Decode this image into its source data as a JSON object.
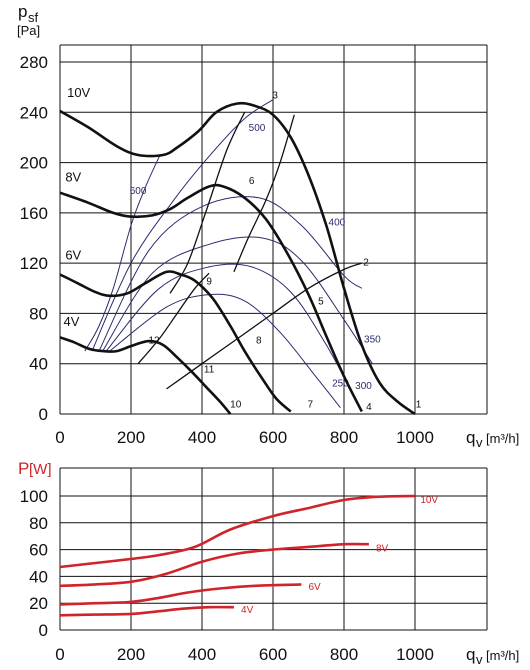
{
  "colors": {
    "ink": "#111111",
    "efficiency": "#2b2d6e",
    "power": "#d1232a"
  },
  "chart_data": [
    {
      "type": "line",
      "ylabel_main": "p",
      "ylabel_sub": "sf",
      "ylabel_unit": "[Pa]",
      "xlabel_main": "q",
      "xlabel_sub": "v",
      "xlabel_unit": "[m³/h]",
      "xlim": [
        0,
        1000
      ],
      "ylim": [
        0,
        280
      ],
      "x_ticks": [
        "0",
        "200",
        "400",
        "600",
        "800",
        "1000"
      ],
      "y_ticks": [
        "0",
        "40",
        "80",
        "120",
        "160",
        "200",
        "240",
        "280"
      ],
      "grid": true,
      "series": [
        {
          "name": "10V",
          "points": [
            [
              0,
              241
            ],
            [
              80,
              228
            ],
            [
              160,
              213
            ],
            [
              220,
              206
            ],
            [
              290,
              206
            ],
            [
              330,
              212
            ],
            [
              390,
              225
            ],
            [
              440,
              240
            ],
            [
              500,
              247
            ],
            [
              550,
              245
            ],
            [
              600,
              238
            ],
            [
              650,
              220
            ],
            [
              700,
              190
            ],
            [
              750,
              150
            ],
            [
              800,
              100
            ],
            [
              850,
              55
            ],
            [
              900,
              25
            ],
            [
              950,
              10
            ],
            [
              1000,
              0
            ]
          ]
        },
        {
          "name": "8V",
          "points": [
            [
              0,
              176
            ],
            [
              80,
              168
            ],
            [
              150,
              160
            ],
            [
              200,
              157
            ],
            [
              260,
              158
            ],
            [
              310,
              163
            ],
            [
              360,
              172
            ],
            [
              420,
              181
            ],
            [
              460,
              181
            ],
            [
              520,
              172
            ],
            [
              580,
              155
            ],
            [
              640,
              128
            ],
            [
              700,
              95
            ],
            [
              750,
              62
            ],
            [
              800,
              30
            ],
            [
              850,
              2
            ]
          ]
        },
        {
          "name": "6V",
          "points": [
            [
              0,
              111
            ],
            [
              50,
              104
            ],
            [
              100,
              97
            ],
            [
              140,
              94
            ],
            [
              190,
              96
            ],
            [
              240,
              104
            ],
            [
              300,
              113
            ],
            [
              340,
              111
            ],
            [
              380,
              106
            ],
            [
              430,
              92
            ],
            [
              480,
              70
            ],
            [
              520,
              50
            ],
            [
              570,
              28
            ],
            [
              610,
              12
            ],
            [
              650,
              2
            ]
          ]
        },
        {
          "name": "4V",
          "points": [
            [
              0,
              61
            ],
            [
              40,
              57
            ],
            [
              80,
              52
            ],
            [
              120,
              50
            ],
            [
              160,
              50
            ],
            [
              200,
              54
            ],
            [
              250,
              58
            ],
            [
              290,
              55
            ],
            [
              330,
              45
            ],
            [
              370,
              34
            ],
            [
              410,
              22
            ],
            [
              450,
              10
            ],
            [
              480,
              0
            ]
          ]
        }
      ],
      "system_curves": [
        {
          "points": [
            [
              310,
              96
            ],
            [
              360,
              120
            ],
            [
              410,
              160
            ],
            [
              470,
              210
            ],
            [
              520,
              240
            ]
          ],
          "label": "3"
        },
        {
          "points": [
            [
              490,
              113
            ],
            [
              530,
              140
            ],
            [
              580,
              170
            ],
            [
              620,
              200
            ],
            [
              660,
              238
            ]
          ],
          "label": "6"
        },
        {
          "points": [
            [
              220,
              40
            ],
            [
              280,
              60
            ],
            [
              330,
              80
            ],
            [
              380,
              100
            ],
            [
              420,
              112
            ]
          ],
          "label": "12"
        },
        {
          "points": [
            [
              300,
              20
            ],
            [
              400,
              40
            ],
            [
              500,
              60
            ],
            [
              600,
              80
            ],
            [
              700,
              100
            ],
            [
              800,
              115
            ],
            [
              850,
              120
            ]
          ],
          "label": "11"
        }
      ],
      "point_labels": [
        {
          "label": "1",
          "x": 1010,
          "y": 5
        },
        {
          "label": "2",
          "x": 862,
          "y": 118
        },
        {
          "label": "3",
          "x": 606,
          "y": 251
        },
        {
          "label": "4",
          "x": 870,
          "y": 3
        },
        {
          "label": "5",
          "x": 735,
          "y": 87
        },
        {
          "label": "6",
          "x": 540,
          "y": 183
        },
        {
          "label": "7",
          "x": 705,
          "y": 5
        },
        {
          "label": "8",
          "x": 560,
          "y": 56
        },
        {
          "label": "9",
          "x": 420,
          "y": 103
        },
        {
          "label": "10",
          "x": 495,
          "y": 5
        },
        {
          "label": "11",
          "x": 420,
          "y": 33
        },
        {
          "label": "12",
          "x": 265,
          "y": 56
        }
      ],
      "series_labels": [
        {
          "label": "10V",
          "x": 20,
          "y": 252
        },
        {
          "label": "8V",
          "x": 15,
          "y": 185
        },
        {
          "label": "6V",
          "x": 15,
          "y": 123
        },
        {
          "label": "4V",
          "x": 10,
          "y": 70
        }
      ],
      "efficiency_curves": [
        {
          "label": "600",
          "points": [
            [
              70,
              50
            ],
            [
              110,
              70
            ],
            [
              150,
              100
            ],
            [
              200,
              150
            ],
            [
              240,
              180
            ],
            [
              280,
              205
            ]
          ],
          "label_at": [
            220,
            175
          ]
        },
        {
          "label": "500",
          "points": [
            [
              90,
              50
            ],
            [
              200,
              120
            ],
            [
              320,
              170
            ],
            [
              420,
              205
            ],
            [
              520,
              235
            ],
            [
              600,
              250
            ]
          ],
          "label_at": [
            555,
            225
          ]
        },
        {
          "label": "400",
          "points": [
            [
              110,
              50
            ],
            [
              250,
              130
            ],
            [
              400,
              165
            ],
            [
              560,
              172
            ],
            [
              680,
              150
            ],
            [
              800,
              110
            ],
            [
              850,
              100
            ]
          ],
          "label_at": [
            780,
            150
          ]
        },
        {
          "label": "350",
          "points": [
            [
              120,
              50
            ],
            [
              260,
              112
            ],
            [
              420,
              135
            ],
            [
              570,
              140
            ],
            [
              680,
              122
            ],
            [
              800,
              75
            ],
            [
              880,
              40
            ]
          ],
          "label_at": [
            880,
            57
          ]
        },
        {
          "label": "300",
          "points": [
            [
              130,
              50
            ],
            [
              280,
              100
            ],
            [
              420,
              117
            ],
            [
              540,
              117
            ],
            [
              650,
              97
            ],
            [
              750,
              55
            ],
            [
              820,
              18
            ]
          ],
          "label_at": [
            855,
            20
          ]
        },
        {
          "label": "250",
          "points": [
            [
              140,
              50
            ],
            [
              300,
              85
            ],
            [
              420,
              95
            ],
            [
              520,
              90
            ],
            [
              620,
              65
            ],
            [
              720,
              30
            ],
            [
              790,
              5
            ]
          ],
          "label_at": [
            790,
            22
          ]
        }
      ]
    },
    {
      "type": "line",
      "ylabel_main": "P",
      "ylabel_unit": "[W]",
      "xlabel_main": "q",
      "xlabel_sub": "v",
      "xlabel_unit": "[m³/h]",
      "xlim": [
        0,
        1000
      ],
      "ylim": [
        0,
        100
      ],
      "x_ticks": [
        "0",
        "200",
        "400",
        "600",
        "800",
        "1000"
      ],
      "y_ticks": [
        "0",
        "20",
        "40",
        "60",
        "80",
        "100"
      ],
      "grid": true,
      "series": [
        {
          "name": "10V",
          "points": [
            [
              0,
              47
            ],
            [
              100,
              50
            ],
            [
              200,
              53
            ],
            [
              280,
              56
            ],
            [
              380,
              62
            ],
            [
              480,
              75
            ],
            [
              600,
              85
            ],
            [
              700,
              91
            ],
            [
              800,
              97
            ],
            [
              900,
              99.5
            ],
            [
              1000,
              100
            ]
          ]
        },
        {
          "name": "8V",
          "points": [
            [
              0,
              33
            ],
            [
              100,
              34
            ],
            [
              200,
              36
            ],
            [
              300,
              42
            ],
            [
              400,
              51
            ],
            [
              500,
              57
            ],
            [
              600,
              60
            ],
            [
              700,
              62
            ],
            [
              800,
              64
            ],
            [
              870,
              64
            ]
          ]
        },
        {
          "name": "6V",
          "points": [
            [
              0,
              19
            ],
            [
              100,
              20
            ],
            [
              200,
              21
            ],
            [
              280,
              24
            ],
            [
              360,
              28
            ],
            [
              450,
              31
            ],
            [
              550,
              33
            ],
            [
              680,
              34
            ]
          ]
        },
        {
          "name": "4V",
          "points": [
            [
              0,
              11
            ],
            [
              100,
              11.5
            ],
            [
              200,
              12
            ],
            [
              280,
              14
            ],
            [
              350,
              16
            ],
            [
              420,
              17
            ],
            [
              490,
              17
            ]
          ]
        }
      ],
      "series_labels": [
        {
          "label": "10V",
          "x": 1015,
          "y": 97
        },
        {
          "label": "8V",
          "x": 890,
          "y": 61
        },
        {
          "label": "6V",
          "x": 700,
          "y": 32
        },
        {
          "label": "4V",
          "x": 510,
          "y": 15
        }
      ]
    }
  ]
}
